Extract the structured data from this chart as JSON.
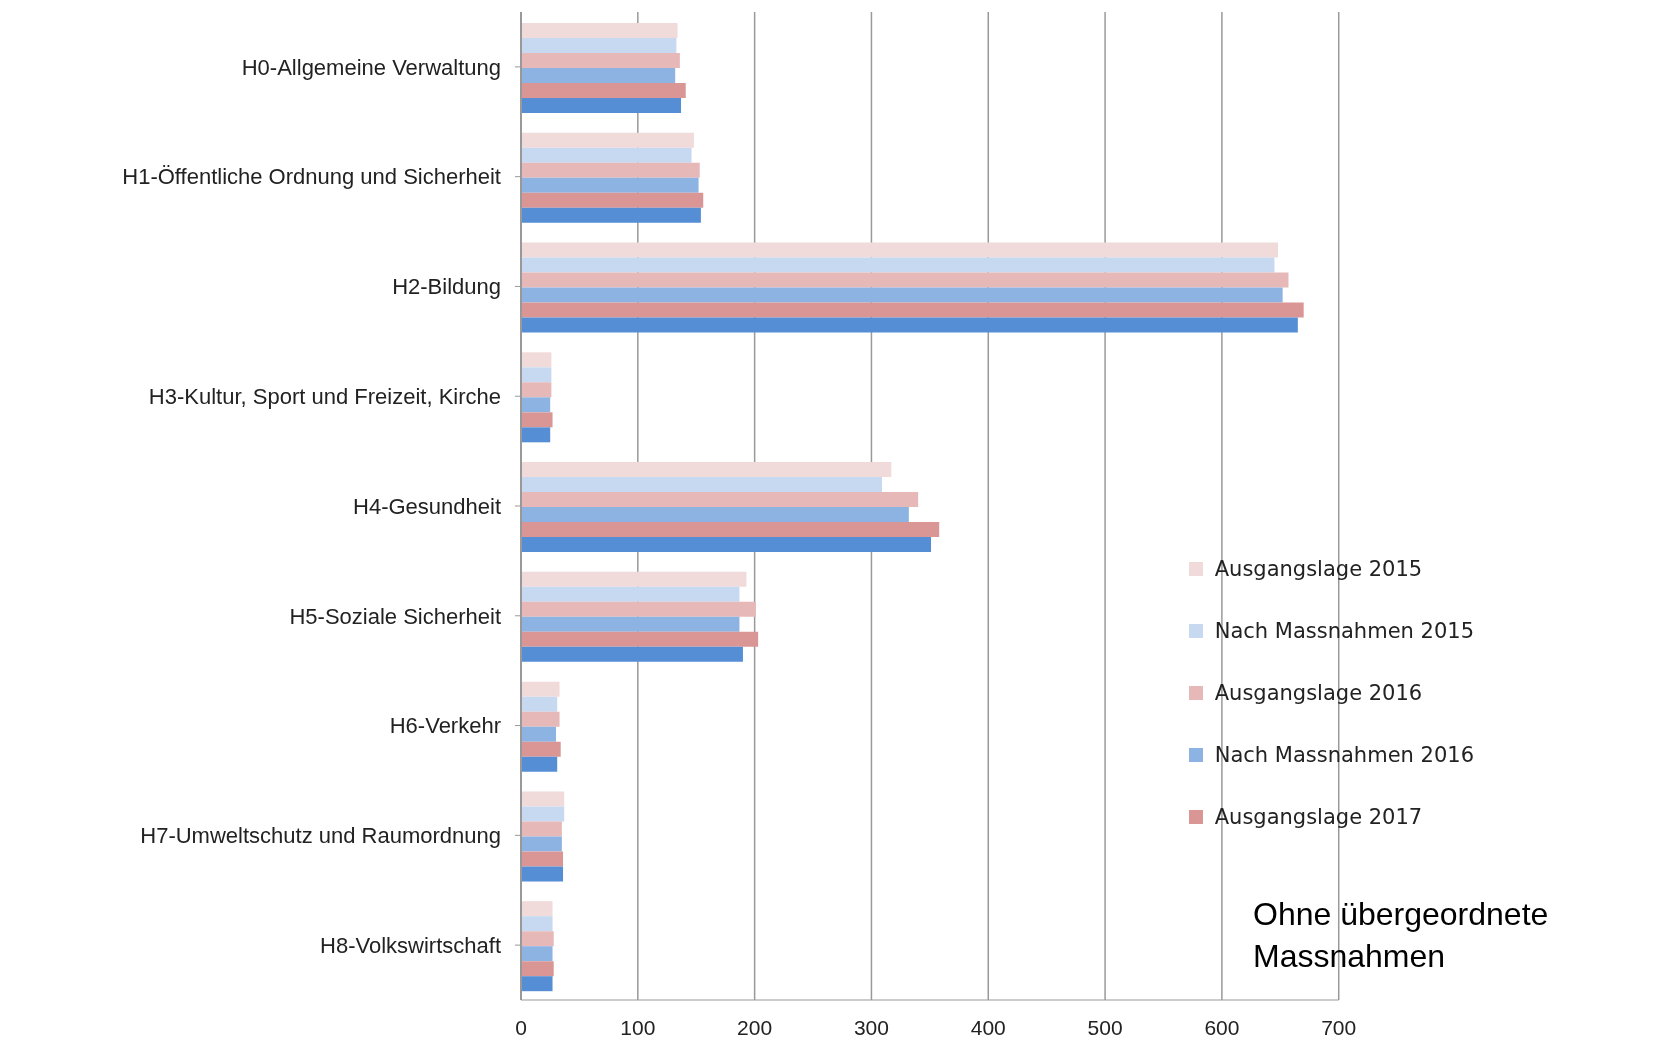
{
  "chart_data": {
    "type": "bar",
    "orientation": "horizontal",
    "categories": [
      "H0-Allgemeine Verwaltung",
      "H1-Öffentliche Ordnung und Sicherheit",
      "H2-Bildung",
      "H3-Kultur, Sport und Freizeit, Kirche",
      "H4-Gesundheit",
      "H5-Soziale Sicherheit",
      "H6-Verkehr",
      "H7-Umweltschutz und Raumordnung",
      "H8-Volkswirtschaft"
    ],
    "series": [
      {
        "name": "Ausgangslage 2015",
        "color": "#f0dada",
        "values": [
          134,
          148,
          648,
          26,
          317,
          193,
          33,
          37,
          27
        ]
      },
      {
        "name": "Nach Massnahmen 2015",
        "color": "#c6d9f0",
        "values": [
          133,
          146,
          645,
          26,
          309,
          187,
          31,
          37,
          27
        ]
      },
      {
        "name": "Ausgangslage 2016",
        "color": "#e6b8b7",
        "values": [
          136,
          153,
          657,
          26,
          340,
          201,
          33,
          35,
          28
        ]
      },
      {
        "name": "Nach Massnahmen 2016",
        "color": "#8db3e2",
        "values": [
          132,
          152,
          652,
          25,
          332,
          187,
          30,
          35,
          27
        ]
      },
      {
        "name": "Ausgangslage 2017",
        "color": "#d99694",
        "values": [
          141,
          156,
          670,
          27,
          358,
          203,
          34,
          36,
          28
        ]
      },
      {
        "color": "#558ed5",
        "values": [
          137,
          154,
          665,
          25,
          351,
          190,
          31,
          36,
          27
        ]
      }
    ],
    "xlim": [
      0,
      700
    ],
    "xticks": [
      0,
      100,
      200,
      300,
      400,
      500,
      600,
      700
    ],
    "grid": "x",
    "legend": "bottom right",
    "annotations": [
      "Ohne übergeordnete Massnahmen"
    ]
  }
}
